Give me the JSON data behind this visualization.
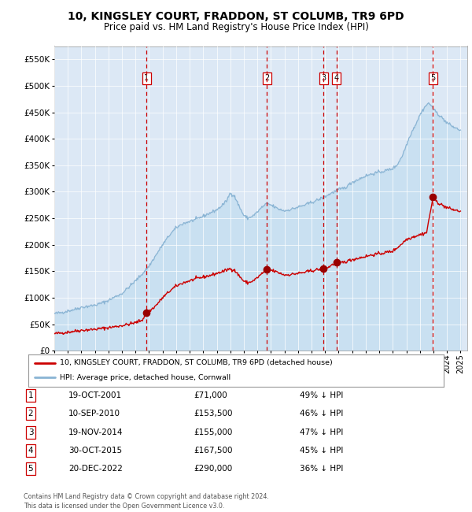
{
  "title": "10, KINGSLEY COURT, FRADDON, ST COLUMB, TR9 6PD",
  "subtitle": "Price paid vs. HM Land Registry's House Price Index (HPI)",
  "title_fontsize": 10,
  "subtitle_fontsize": 8.5,
  "background_color": "#ffffff",
  "plot_bg_color": "#dce8f5",
  "ylim": [
    0,
    575000
  ],
  "yticks": [
    0,
    50000,
    100000,
    150000,
    200000,
    250000,
    300000,
    350000,
    400000,
    450000,
    500000,
    550000
  ],
  "xlim_start": 1995.0,
  "xlim_end": 2025.5,
  "hpi_color": "#8ab4d4",
  "hpi_fill_color": "#c5dff0",
  "price_color": "#cc0000",
  "vline_color": "#cc0000",
  "sale_dates_num": [
    2001.8,
    2010.69,
    2014.89,
    2015.83,
    2022.97
  ],
  "sale_prices": [
    71000,
    153500,
    155000,
    167500,
    290000
  ],
  "sale_labels": [
    "1",
    "2",
    "3",
    "4",
    "5"
  ],
  "legend_line1": "10, KINGSLEY COURT, FRADDON, ST COLUMB, TR9 6PD (detached house)",
  "legend_line2": "HPI: Average price, detached house, Cornwall",
  "table_rows": [
    [
      "1",
      "19-OCT-2001",
      "£71,000",
      "49% ↓ HPI"
    ],
    [
      "2",
      "10-SEP-2010",
      "£153,500",
      "46% ↓ HPI"
    ],
    [
      "3",
      "19-NOV-2014",
      "£155,000",
      "47% ↓ HPI"
    ],
    [
      "4",
      "30-OCT-2015",
      "£167,500",
      "45% ↓ HPI"
    ],
    [
      "5",
      "20-DEC-2022",
      "£290,000",
      "36% ↓ HPI"
    ]
  ],
  "footer": "Contains HM Land Registry data © Crown copyright and database right 2024.\nThis data is licensed under the Open Government Licence v3.0."
}
